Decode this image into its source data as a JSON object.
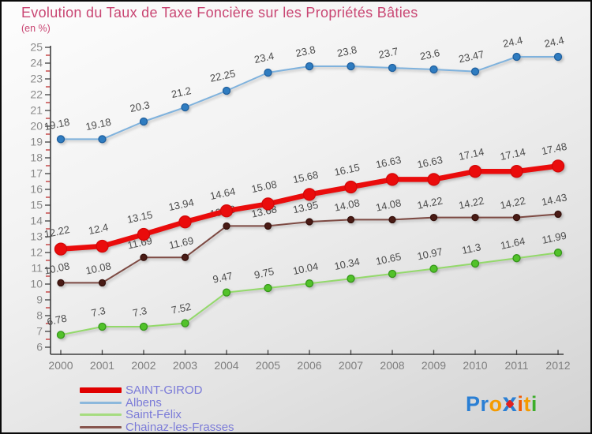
{
  "title": "Evolution du Taux de Taxe Foncière sur les Propriétés Bâties",
  "subtitle": "(en %)",
  "colors": {
    "title": "#c94673",
    "legend_text": "#7b7bd8",
    "axis": "#3f3f3f",
    "tick_label": "#8a8a8a",
    "minor_tick": "#c03030",
    "data_label": "#4c4c4c",
    "logo_accent": "#e02020"
  },
  "chart_data": {
    "type": "line",
    "title": "Evolution du Taux de Taxe Foncière sur les Propriétés Bâties",
    "subtitle": "(en %)",
    "xlabel": "",
    "ylabel": "(en %)",
    "ylim": [
      6,
      25
    ],
    "y_major_step": 1,
    "y_minor_step": 0.5,
    "grid": false,
    "legend_position": "bottom-left",
    "x_labels": [
      "2000",
      "2001",
      "2002",
      "2003",
      "2004",
      "2005",
      "2006",
      "2007",
      "2008",
      "2009",
      "2010",
      "2011",
      "2012"
    ],
    "series": [
      {
        "name": "SAINT-GIROD",
        "line_color": "#ea0c0c",
        "marker_color": "#ea0c0c",
        "marker_edge": "#d40808",
        "line_width": 6.5,
        "marker_r": 7.5,
        "values": [
          12.22,
          12.4,
          13.15,
          13.94,
          14.64,
          15.08,
          15.68,
          16.15,
          16.63,
          16.63,
          17.14,
          17.14,
          17.48
        ],
        "labels": [
          "12.22",
          "12.4",
          "13.15",
          "13.94",
          "14.64",
          "15.08",
          "15.68",
          "16.15",
          "16.63",
          "16.63",
          "17.14",
          "17.14",
          "17.48"
        ]
      },
      {
        "name": "Albens",
        "line_color": "#7fb2dd",
        "marker_color": "#2f7cc0",
        "marker_edge": "#1f5f9e",
        "line_width": 2,
        "marker_r": 4.5,
        "values": [
          19.18,
          19.18,
          20.3,
          21.2,
          22.25,
          23.4,
          23.8,
          23.8,
          23.7,
          23.6,
          23.47,
          24.4,
          24.4
        ],
        "labels": [
          "19.18",
          "19.18",
          "20.3",
          "21.2",
          "22.25",
          "23.4",
          "23.8",
          "23.8",
          "23.7",
          "23.6",
          "23.47",
          "24.4",
          "24.4"
        ]
      },
      {
        "name": "Saint-Félix",
        "line_color": "#93d96a",
        "marker_color": "#52c22a",
        "marker_edge": "#35961a",
        "line_width": 2,
        "marker_r": 4.5,
        "values": [
          6.78,
          7.3,
          7.3,
          7.52,
          9.47,
          9.75,
          10.04,
          10.34,
          10.65,
          10.97,
          11.3,
          11.64,
          11.99
        ],
        "labels": [
          "6.78",
          "7.3",
          "7.3",
          "7.52",
          "9.47",
          "9.75",
          "10.04",
          "10.34",
          "10.65",
          "10.97",
          "11.3",
          "11.64",
          "11.99"
        ]
      },
      {
        "name": "Chainaz-les-Frasses",
        "line_color": "#7d4a43",
        "marker_color": "#4a1b15",
        "marker_edge": "#35110c",
        "line_width": 2,
        "marker_r": 4,
        "values": [
          10.08,
          10.08,
          11.69,
          11.69,
          13.68,
          13.68,
          13.95,
          14.08,
          14.08,
          14.22,
          14.22,
          14.22,
          14.43
        ],
        "labels": [
          "10.08",
          "10.08",
          "11.69",
          "11.69",
          "13.68",
          "13.68",
          "13.95",
          "14.08",
          "14.08",
          "14.22",
          "14.22",
          "14.22",
          "14.43"
        ]
      }
    ]
  },
  "legend": {
    "items": [
      {
        "name": "SAINT-GIROD",
        "swatch_color": "#e00000",
        "swatch_height": 7
      },
      {
        "name": "Albens",
        "swatch_color": "#8cb8dc",
        "swatch_height": 3
      },
      {
        "name": "Saint-Félix",
        "swatch_color": "#a6dc80",
        "swatch_height": 3
      },
      {
        "name": "Chainaz-les-Frasses",
        "swatch_color": "#87554e",
        "swatch_height": 3
      }
    ]
  },
  "logo": {
    "name": "Proxiti",
    "segments": [
      {
        "text": "P",
        "color": "#2a7fd4"
      },
      {
        "text": "r",
        "color": "#2a7fd4"
      },
      {
        "text": "o",
        "color": "#f59b00"
      },
      {
        "text": "x",
        "color": "#2a7fd4",
        "big": true,
        "accent": "#e02020"
      },
      {
        "text": "i",
        "color": "#f25c05"
      },
      {
        "text": "t",
        "color": "#f59b00"
      },
      {
        "text": "i",
        "color": "#3dae2b"
      }
    ]
  }
}
